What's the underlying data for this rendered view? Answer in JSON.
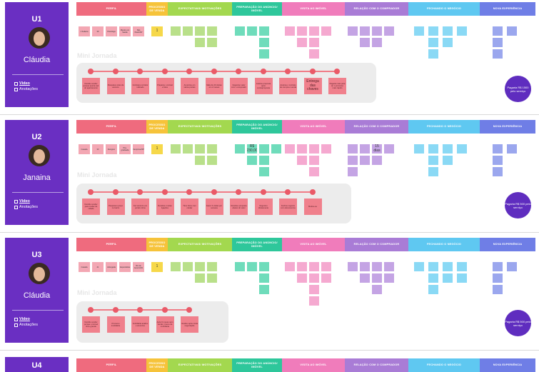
{
  "phases": [
    {
      "key": "perfil",
      "label": "PERFIL",
      "color": "#ef6b7e",
      "width": 98
    },
    {
      "key": "processo",
      "label": "PROCESSO DE VENDA",
      "color": "#f6c33a",
      "width": 30
    },
    {
      "key": "expectativas",
      "label": "EXPECTATIVAS/ MOTIVAÇÕES",
      "color": "#a3d84f",
      "width": 90
    },
    {
      "key": "preparacao",
      "label": "PREPARAÇÃO DO ANÚNCIO/ IMÓVEL",
      "color": "#2ec79b",
      "width": 70
    },
    {
      "key": "visita",
      "label": "VISITA AO IMÓVEL",
      "color": "#f07cbb",
      "width": 88
    },
    {
      "key": "relacao",
      "label": "RELAÇÃO COM O COMPRADOR",
      "color": "#a97cd6",
      "width": 89
    },
    {
      "key": "fechando",
      "label": "FECHANDO O NEGÓCIO",
      "color": "#5fc8f1",
      "width": 100
    },
    {
      "key": "nova",
      "label": "NOVA EXPERIÊNCIA",
      "color": "#6f7ee6",
      "width": 78
    }
  ],
  "mini_journey_title": "Mini Jornada",
  "users": [
    {
      "code": "U1",
      "name": "Cláudia",
      "video_label": "Video",
      "notes_label": "Anotações",
      "perfil_notes": [
        "1 Solteira",
        "39",
        "Psicóloga",
        "Mestre em Saúde",
        "São Paulo/SP"
      ],
      "processo_note": "1",
      "journey": [
        "Decidiu vender porque queria sair do apartamento",
        "Pesquisou sites de anúncio",
        "Contratou corretor indicado",
        "Preparou o imóvel e fotos",
        "Anunciou em vários portais",
        "Mais de 20 visitas em 2 meses",
        "Negociou valor com o comprador",
        "Aceitou proposta após contraproposta",
        "Assinou o contrato de compra e venda",
        "Entrega das chaves",
        "Pagaria mais para ter o processo mais rápido"
      ],
      "journey_big_index": 9,
      "price_text": "Pagaria R$ 1500 pelo serviço"
    },
    {
      "code": "U2",
      "name": "Janaina",
      "video_label": "Video",
      "notes_label": "Anotações",
      "perfil_notes": [
        "Casada",
        "33",
        "Designer",
        "Pós-graduada",
        "Campinas/SP"
      ],
      "processo_note": "1",
      "preparacao_big": "R$ 230,00",
      "relacao_big": "15 dias",
      "journey": [
        "Decidiu vender para mudar de cidade",
        "Pesquisou preço no bairro",
        "Fez anúncio em portal online",
        "Recebeu muitas ligações",
        "Tirou fotos com celular",
        "Fazer 3 visitas por semana",
        "Recebeu proposta abaixo do valor",
        "Negociou diretamente",
        "Fechou negócio com documentos",
        "Mudou-se"
      ],
      "price_text": "Pagaria R$ 500 pelo serviço"
    },
    {
      "code": "U3",
      "name": "Cláudia",
      "video_label": "Video",
      "notes_label": "Anotações",
      "perfil_notes": [
        "Casada",
        "41",
        "Advogada",
        "Especialista",
        "Rio de Janeiro/RJ"
      ],
      "processo_note": "1",
      "journey": [
        "Decidiu vender porque o imóvel ficou grande",
        "Procurou imobiliária",
        "Imobiliária avaliou e anunciou",
        "Após 6 meses sem vender, trocou de imobiliária",
        "Vendeu após muita negociação"
      ],
      "price_text": "Pagaria R$ 500 pelo serviço"
    }
  ],
  "sub_label_text": "nome"
}
